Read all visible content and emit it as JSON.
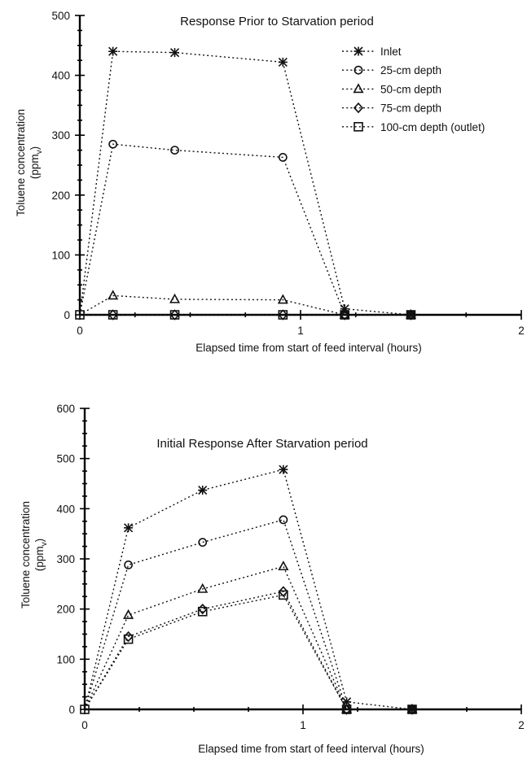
{
  "chart_data": [
    {
      "type": "line",
      "title": "Response Prior to Starvation period",
      "xlabel": "Elapsed time from start of feed interval (hours)",
      "ylabel": "Toluene concentration (ppmv)",
      "ylabel_line1": "Toluene concentration",
      "ylabel_line2_main": "(ppm",
      "ylabel_line2_sub": "v",
      "ylabel_line2_end": ")",
      "xlim": [
        0,
        2
      ],
      "ylim": [
        0,
        500
      ],
      "xticks": [
        "0",
        "1",
        "2"
      ],
      "yticks": [
        "0",
        "100",
        "200",
        "300",
        "400",
        "500"
      ],
      "legend_position": "top-right",
      "grid": false,
      "series": [
        {
          "name": "Inlet",
          "marker": "asterisk",
          "x": [
            0,
            0.15,
            0.43,
            0.92,
            1.2,
            1.5
          ],
          "y": [
            0,
            440,
            438,
            422,
            10,
            0
          ]
        },
        {
          "name": "25-cm depth",
          "marker": "circle",
          "x": [
            0,
            0.15,
            0.43,
            0.92,
            1.2,
            1.5
          ],
          "y": [
            0,
            285,
            275,
            263,
            0,
            0
          ]
        },
        {
          "name": "50-cm depth",
          "marker": "triangle",
          "x": [
            0,
            0.15,
            0.43,
            0.92,
            1.2,
            1.5
          ],
          "y": [
            0,
            32,
            26,
            25,
            0,
            0
          ]
        },
        {
          "name": "75-cm depth",
          "marker": "diamond",
          "x": [
            0,
            0.15,
            0.43,
            0.92,
            1.2,
            1.5
          ],
          "y": [
            0,
            0,
            0,
            0,
            0,
            0
          ]
        },
        {
          "name": "100-cm depth (outlet)",
          "marker": "square",
          "x": [
            0,
            0.15,
            0.43,
            0.92,
            1.2,
            1.5
          ],
          "y": [
            0,
            0,
            0,
            0,
            0,
            0
          ]
        }
      ]
    },
    {
      "type": "line",
      "title": "Initial Response After Starvation period",
      "xlabel": "Elapsed time from start of feed interval (hours)",
      "ylabel": "Toluene concentration (ppmv)",
      "ylabel_line1": "Toluene concentration",
      "ylabel_line2_main": "(ppm",
      "ylabel_line2_sub": "v",
      "ylabel_line2_end": ")",
      "xlim": [
        0,
        2
      ],
      "ylim": [
        0,
        600
      ],
      "xticks": [
        "0",
        "1",
        "2"
      ],
      "yticks": [
        "0",
        "100",
        "200",
        "300",
        "400",
        "500",
        "600"
      ],
      "legend_position": "none",
      "grid": false,
      "series": [
        {
          "name": "Inlet",
          "marker": "asterisk",
          "x": [
            0,
            0.2,
            0.54,
            0.91,
            1.2,
            1.5
          ],
          "y": [
            0,
            362,
            437,
            478,
            15,
            0
          ]
        },
        {
          "name": "25-cm depth",
          "marker": "circle",
          "x": [
            0,
            0.2,
            0.54,
            0.91,
            1.2,
            1.5
          ],
          "y": [
            0,
            288,
            333,
            378,
            0,
            0
          ]
        },
        {
          "name": "50-cm depth",
          "marker": "triangle",
          "x": [
            0,
            0.2,
            0.54,
            0.91,
            1.2,
            1.5
          ],
          "y": [
            0,
            188,
            240,
            285,
            0,
            0
          ]
        },
        {
          "name": "75-cm depth",
          "marker": "diamond",
          "x": [
            0,
            0.2,
            0.54,
            0.91,
            1.2,
            1.5
          ],
          "y": [
            0,
            145,
            200,
            235,
            0,
            0
          ]
        },
        {
          "name": "100-cm depth (outlet)",
          "marker": "square",
          "x": [
            0,
            0.2,
            0.54,
            0.91,
            1.2,
            1.5
          ],
          "y": [
            0,
            140,
            195,
            228,
            0,
            0
          ]
        }
      ]
    }
  ]
}
